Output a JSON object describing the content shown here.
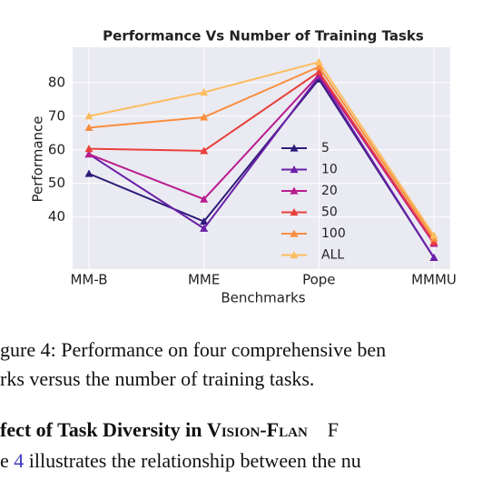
{
  "chart_data": {
    "type": "line",
    "title": "Performance Vs Number of Training Tasks",
    "x_label": "Benchmarks",
    "y_label": "Performance",
    "categories": [
      "MM-B",
      "MME",
      "Pope",
      "MMMU"
    ],
    "series": [
      {
        "name": "5",
        "color": "#2e1a78",
        "values": [
          52.9,
          38.7,
          81.0,
          27.9
        ]
      },
      {
        "name": "10",
        "color": "#6a20a8",
        "values": [
          58.7,
          36.6,
          81.8,
          27.9
        ]
      },
      {
        "name": "20",
        "color": "#b81c8e",
        "values": [
          58.7,
          45.3,
          82.3,
          32.1
        ]
      },
      {
        "name": "50",
        "color": "#e8403a",
        "values": [
          60.3,
          59.7,
          83.2,
          32.6
        ]
      },
      {
        "name": "100",
        "color": "#f98e3e",
        "values": [
          66.6,
          69.7,
          84.7,
          33.7
        ]
      },
      {
        "name": "ALL",
        "color": "#fbbd60",
        "values": [
          70.0,
          77.1,
          86.1,
          34.5
        ]
      }
    ],
    "ylim": [
      24.5,
      90.5
    ],
    "yticks": [
      40,
      50,
      60,
      70,
      80
    ],
    "grid": true,
    "legend": "lower center"
  },
  "caption": {
    "lines": [
      "gure 4: Performance on four comprehensive ben",
      "rks versus the number of training tasks."
    ]
  },
  "section": {
    "heading": {
      "text": "fect of Task Diversity in ",
      "name": "Vision-Flan",
      "rest": "F"
    },
    "body": {
      "before": "e ",
      "ref": "4",
      "after": " illustrates the relationship between the nu"
    }
  }
}
